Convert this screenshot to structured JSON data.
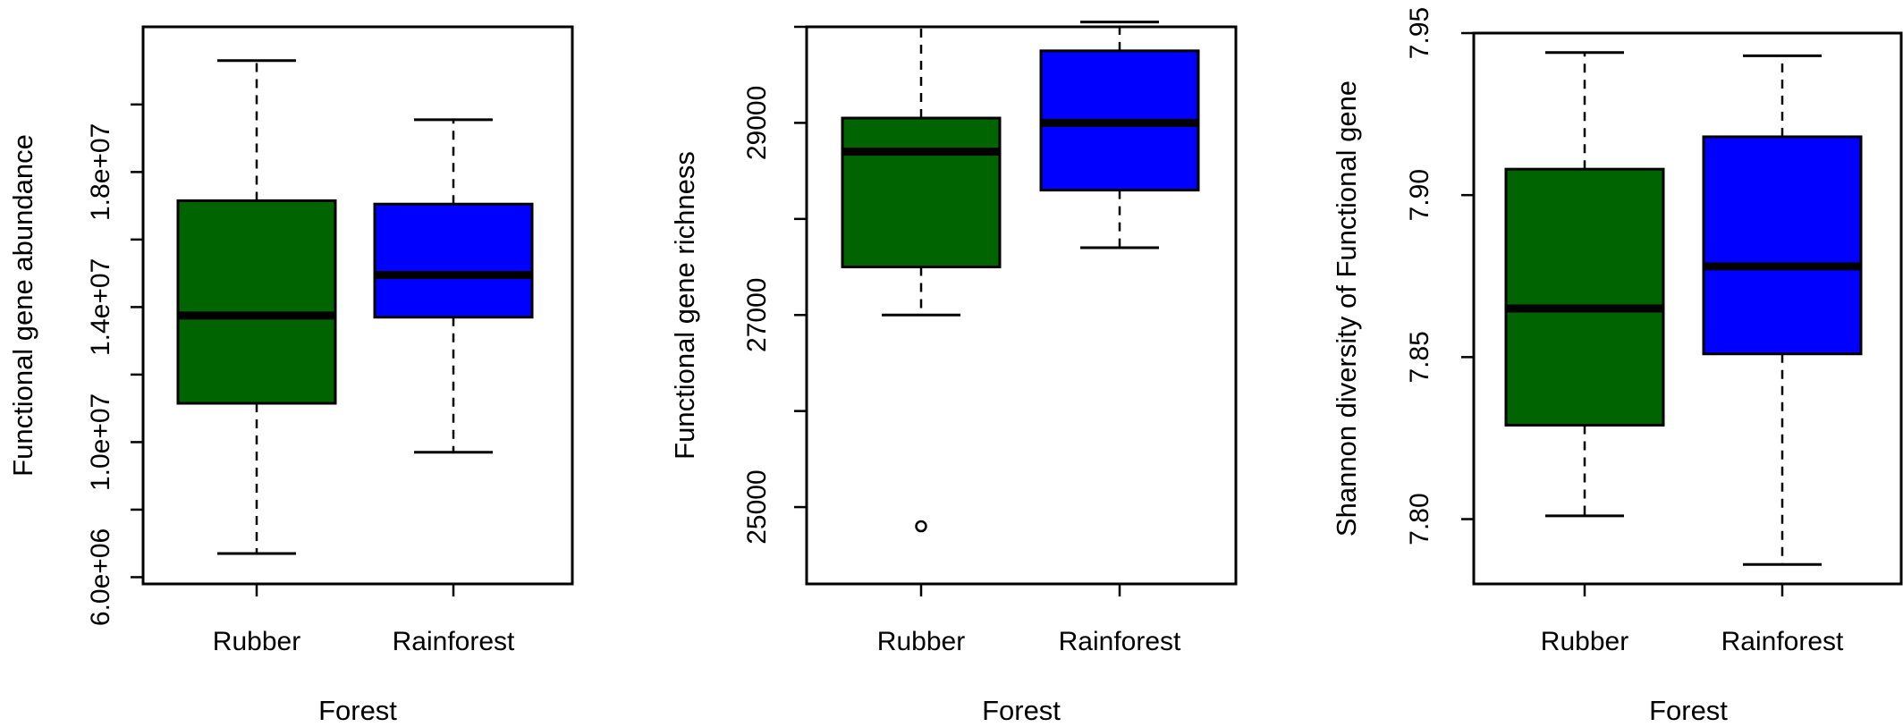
{
  "chart_data": [
    {
      "type": "boxplot",
      "xlabel": "Forest",
      "ylabel": "Functional gene abundance",
      "categories": [
        "Rubber",
        "Rainforest"
      ],
      "colors": [
        "#006400",
        "#0000ff"
      ],
      "ylim": [
        5800000,
        22300000
      ],
      "yticks": [
        6000000,
        10000000,
        14000000,
        18000000
      ],
      "ytick_labels": [
        "6.0e+06",
        "1.0e+07",
        "1.4e+07",
        "1.8e+07"
      ],
      "yticks_unlabeled": [
        8000000,
        12000000,
        16000000,
        20000000
      ],
      "boxes": [
        {
          "category": "Rubber",
          "whisker_low": 6700000,
          "q1": 11150000,
          "median": 13750000,
          "q3": 17150000,
          "whisker_high": 21300000,
          "outliers": []
        },
        {
          "category": "Rainforest",
          "whisker_low": 9700000,
          "q1": 13700000,
          "median": 14950000,
          "q3": 17050000,
          "whisker_high": 19550000,
          "outliers": []
        }
      ]
    },
    {
      "type": "boxplot",
      "xlabel": "Forest",
      "ylabel": "Functional gene richness",
      "categories": [
        "Rubber",
        "Rainforest"
      ],
      "colors": [
        "#006400",
        "#0000ff"
      ],
      "ylim": [
        24200,
        30000
      ],
      "yticks": [
        25000,
        27000,
        29000
      ],
      "ytick_labels": [
        "25000",
        "27000",
        "29000"
      ],
      "yticks_unlabeled": [
        26000,
        28000,
        30000
      ],
      "boxes": [
        {
          "category": "Rubber",
          "whisker_low": 27000,
          "q1": 27500,
          "median": 28700,
          "q3": 29050,
          "whisker_high": 30000,
          "outliers": [
            24800
          ]
        },
        {
          "category": "Rainforest",
          "whisker_low": 27700,
          "q1": 28300,
          "median": 29000,
          "q3": 29750,
          "whisker_high": 30050,
          "outliers": []
        }
      ]
    },
    {
      "type": "boxplot",
      "xlabel": "Forest",
      "ylabel": "Shannon diversity of Functional gene",
      "categories": [
        "Rubber",
        "Rainforest"
      ],
      "colors": [
        "#006400",
        "#0000ff"
      ],
      "ylim": [
        7.78,
        7.95
      ],
      "yticks": [
        7.8,
        7.85,
        7.9,
        7.95
      ],
      "ytick_labels": [
        "7.80",
        "7.85",
        "7.90",
        "7.95"
      ],
      "yticks_unlabeled": [],
      "boxes": [
        {
          "category": "Rubber",
          "whisker_low": 7.801,
          "q1": 7.829,
          "median": 7.865,
          "q3": 7.908,
          "whisker_high": 7.944,
          "outliers": []
        },
        {
          "category": "Rainforest",
          "whisker_low": 7.786,
          "q1": 7.851,
          "median": 7.878,
          "q3": 7.918,
          "whisker_high": 7.943,
          "outliers": []
        }
      ]
    }
  ]
}
